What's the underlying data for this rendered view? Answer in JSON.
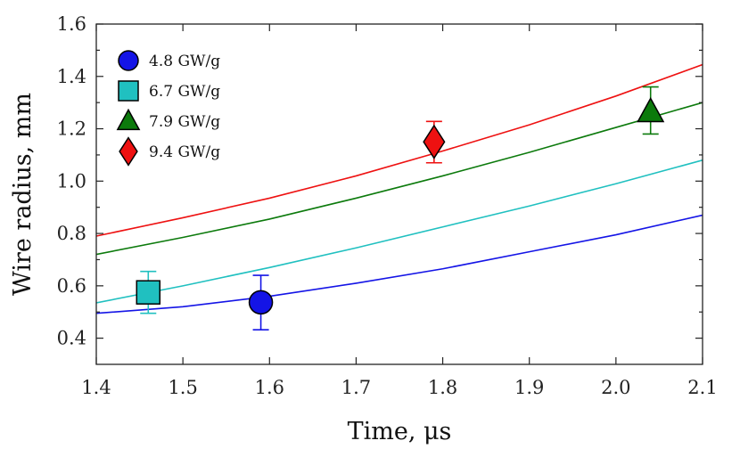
{
  "chart_data": {
    "type": "scatter",
    "xlabel": "Time, μs",
    "ylabel": "Wire radius, mm",
    "xlim": [
      1.4,
      2.1
    ],
    "ylim": [
      0.3,
      1.6
    ],
    "xticks": [
      1.4,
      1.5,
      1.6,
      1.7,
      1.8,
      1.9,
      2.0,
      2.1
    ],
    "xtick_labels": [
      "1.4",
      "1.5",
      "1.6",
      "1.7",
      "1.8",
      "1.9",
      "2.0",
      "2.1"
    ],
    "yticks": [
      0.4,
      0.6,
      0.8,
      1.0,
      1.2,
      1.4,
      1.6
    ],
    "ytick_labels": [
      "0.4",
      "0.6",
      "0.8",
      "1.0",
      "1.2",
      "1.4",
      "1.6"
    ],
    "grid": false,
    "legend_position": "top-left",
    "series": [
      {
        "name": "4.8 GW/g",
        "marker": "circle",
        "color": "#1414e6",
        "point": {
          "x": 1.59,
          "y": 0.537,
          "err_low": 0.432,
          "err_high": 0.64
        },
        "fit": {
          "x": [
            1.4,
            1.5,
            1.6,
            1.7,
            1.8,
            1.9,
            2.0,
            2.1
          ],
          "y": [
            0.495,
            0.52,
            0.56,
            0.61,
            0.665,
            0.73,
            0.795,
            0.87
          ]
        }
      },
      {
        "name": "6.7 GW/g",
        "marker": "square",
        "color": "#20c0c0",
        "point": {
          "x": 1.46,
          "y": 0.575,
          "err_low": 0.495,
          "err_high": 0.655
        },
        "fit": {
          "x": [
            1.4,
            1.5,
            1.6,
            1.7,
            1.8,
            1.9,
            2.0,
            2.1
          ],
          "y": [
            0.535,
            0.6,
            0.67,
            0.745,
            0.825,
            0.905,
            0.99,
            1.08
          ]
        }
      },
      {
        "name": "7.9 GW/g",
        "marker": "triangle",
        "color": "#0c7a0c",
        "point": {
          "x": 2.04,
          "y": 1.265,
          "err_low": 1.18,
          "err_high": 1.36
        },
        "fit": {
          "x": [
            1.4,
            1.5,
            1.6,
            1.7,
            1.8,
            1.9,
            2.0,
            2.1
          ],
          "y": [
            0.72,
            0.785,
            0.855,
            0.935,
            1.02,
            1.11,
            1.205,
            1.3
          ]
        }
      },
      {
        "name": "9.4 GW/g",
        "marker": "diamond",
        "color": "#ee1111",
        "point": {
          "x": 1.79,
          "y": 1.15,
          "err_low": 1.07,
          "err_high": 1.228
        },
        "fit": {
          "x": [
            1.4,
            1.5,
            1.6,
            1.7,
            1.8,
            1.9,
            2.0,
            2.1
          ],
          "y": [
            0.79,
            0.86,
            0.935,
            1.02,
            1.115,
            1.215,
            1.325,
            1.445
          ]
        }
      }
    ]
  }
}
